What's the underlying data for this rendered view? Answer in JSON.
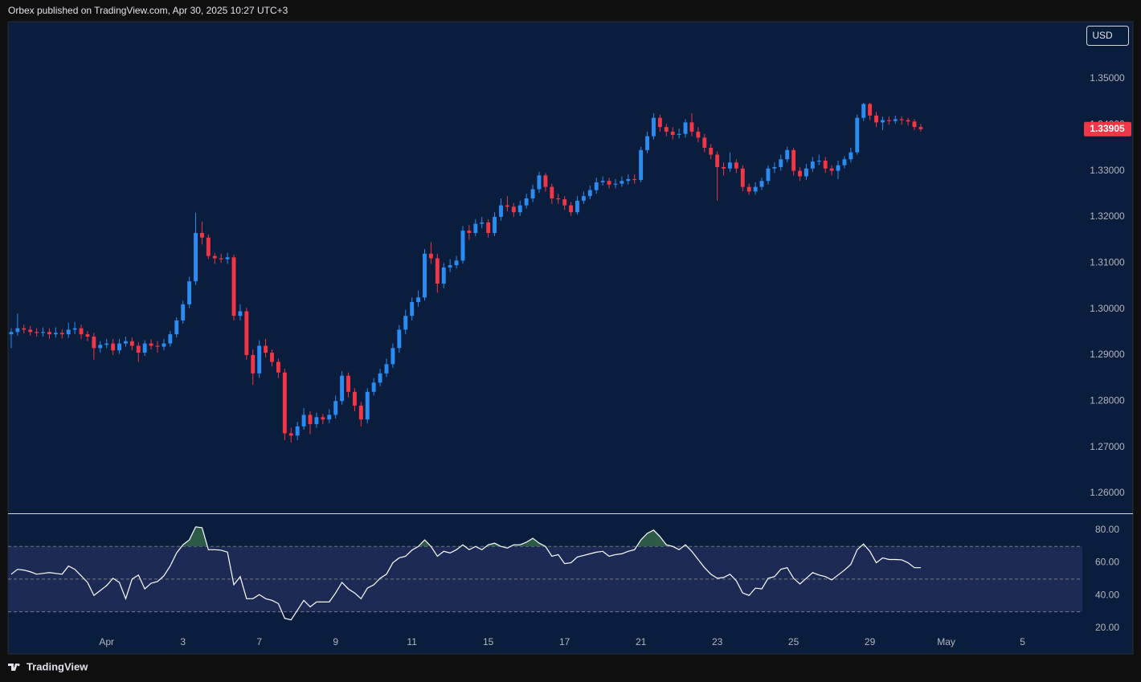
{
  "header": "Orbex published on TradingView.com, Apr 30, 2025 10:27 UTC+3",
  "currency": "USD",
  "brand": "TradingView",
  "chart_data": [
    {
      "type": "candlestick",
      "up_color": "#2a8cf0",
      "down_color": "#f23645",
      "last_color": "#f23645",
      "x": [
        0,
        1,
        2,
        3,
        4,
        5,
        6,
        7,
        8,
        9,
        10,
        11,
        12,
        13,
        14,
        15,
        16,
        17,
        18,
        19,
        20,
        21,
        22,
        23,
        24,
        25,
        26,
        27,
        28,
        29,
        30,
        31,
        32,
        33,
        34,
        35,
        36,
        37,
        38,
        39,
        40,
        41,
        42,
        43,
        44,
        45,
        46,
        47,
        48,
        49,
        50,
        51,
        52,
        53,
        54,
        55,
        56,
        57,
        58,
        59,
        60,
        61,
        62,
        63,
        64,
        65,
        66,
        67,
        68,
        69,
        70,
        71,
        72,
        73,
        74,
        75,
        76,
        77,
        78,
        79,
        80,
        81,
        82,
        83,
        84,
        85,
        86,
        87,
        88,
        89,
        90,
        91,
        92,
        93,
        94,
        95,
        96,
        97,
        98,
        99,
        100,
        101,
        102,
        103,
        104,
        105,
        106,
        107,
        108,
        109,
        110,
        111,
        112,
        113,
        114,
        115,
        116,
        117,
        118,
        119,
        120,
        121,
        122,
        123,
        124,
        125,
        126,
        127,
        128,
        129,
        130,
        131,
        132,
        133,
        134,
        135,
        136,
        137,
        138,
        139,
        140,
        141,
        142,
        143
      ],
      "open": [
        1.2945,
        1.295,
        1.2958,
        1.2955,
        1.295,
        1.2948,
        1.295,
        1.2945,
        1.2948,
        1.2945,
        1.2955,
        1.2958,
        1.2945,
        1.294,
        1.2915,
        1.2922,
        1.2925,
        1.291,
        1.2925,
        1.293,
        1.292,
        1.2905,
        1.2925,
        1.292,
        1.2918,
        1.2925,
        1.2945,
        1.2975,
        1.301,
        1.306,
        1.3165,
        1.3155,
        1.3115,
        1.311,
        1.3108,
        1.3112,
        1.2985,
        1.2995,
        1.29,
        1.286,
        1.292,
        1.2905,
        1.2885,
        1.2862,
        1.273,
        1.2725,
        1.2745,
        1.277,
        1.275,
        1.2765,
        1.276,
        1.277,
        1.28,
        1.2855,
        1.282,
        1.279,
        1.276,
        1.282,
        1.284,
        1.286,
        1.288,
        1.2915,
        1.2955,
        1.2985,
        1.3015,
        1.3025,
        1.312,
        1.311,
        1.3055,
        1.309,
        1.3095,
        1.3105,
        1.317,
        1.3165,
        1.3185,
        1.3188,
        1.3165,
        1.32,
        1.3225,
        1.3222,
        1.321,
        1.3225,
        1.324,
        1.326,
        1.329,
        1.3265,
        1.324,
        1.3238,
        1.3225,
        1.321,
        1.3235,
        1.3245,
        1.3258,
        1.3275,
        1.3278,
        1.327,
        1.3272,
        1.3278,
        1.3282,
        1.328,
        1.3345,
        1.3375,
        1.3415,
        1.3395,
        1.3385,
        1.3378,
        1.338,
        1.3405,
        1.3385,
        1.3372,
        1.335,
        1.3335,
        1.3308,
        1.3305,
        1.3318,
        1.3305,
        1.3265,
        1.3255,
        1.3265,
        1.3278,
        1.3305,
        1.3308,
        1.3325,
        1.3345,
        1.33,
        1.3288,
        1.3305,
        1.332,
        1.3322,
        1.3305,
        1.33,
        1.3312,
        1.3325,
        1.334,
        1.3415,
        1.3445,
        1.342,
        1.3405,
        1.341,
        1.3408,
        1.3412,
        1.341,
        1.3407,
        1.3395
      ],
      "high": [
        1.2958,
        1.299,
        1.2966,
        1.2963,
        1.2958,
        1.296,
        1.2958,
        1.296,
        1.2956,
        1.297,
        1.2972,
        1.2966,
        1.2952,
        1.2948,
        1.293,
        1.2935,
        1.2935,
        1.2935,
        1.294,
        1.2938,
        1.2928,
        1.2932,
        1.2934,
        1.293,
        1.2935,
        1.2952,
        1.2982,
        1.3018,
        1.307,
        1.3209,
        1.319,
        1.3162,
        1.3122,
        1.312,
        1.3122,
        1.3118,
        1.301,
        1.3002,
        1.2912,
        1.2932,
        1.2935,
        1.2912,
        1.2892,
        1.287,
        1.2742,
        1.2755,
        1.2785,
        1.2778,
        1.2775,
        1.2772,
        1.2782,
        1.2812,
        1.2865,
        1.2862,
        1.2828,
        1.2798,
        1.2828,
        1.285,
        1.287,
        1.2892,
        1.2925,
        1.2965,
        1.2998,
        1.3025,
        1.304,
        1.313,
        1.3145,
        1.312,
        1.31,
        1.3108,
        1.3115,
        1.318,
        1.3182,
        1.3195,
        1.32,
        1.3195,
        1.321,
        1.324,
        1.3245,
        1.323,
        1.3235,
        1.325,
        1.327,
        1.3298,
        1.3295,
        1.3272,
        1.325,
        1.3245,
        1.3232,
        1.3245,
        1.3255,
        1.3268,
        1.3285,
        1.3288,
        1.3285,
        1.3282,
        1.3288,
        1.3292,
        1.3292,
        1.3352,
        1.3385,
        1.3425,
        1.3422,
        1.3402,
        1.3395,
        1.3392,
        1.3412,
        1.3425,
        1.3395,
        1.338,
        1.3358,
        1.3342,
        1.3318,
        1.334,
        1.3325,
        1.3312,
        1.3272,
        1.3275,
        1.3285,
        1.3312,
        1.3318,
        1.3335,
        1.3352,
        1.335,
        1.3308,
        1.3315,
        1.333,
        1.3335,
        1.333,
        1.3312,
        1.3322,
        1.3332,
        1.335,
        1.3422,
        1.3448,
        1.3448,
        1.3428,
        1.3418,
        1.3418,
        1.342,
        1.3418,
        1.3415,
        1.3412,
        1.3402
      ],
      "low": [
        1.2915,
        1.2942,
        1.2947,
        1.2942,
        1.294,
        1.294,
        1.2935,
        1.2938,
        1.2936,
        1.2937,
        1.2945,
        1.2935,
        1.293,
        1.289,
        1.2905,
        1.2915,
        1.29,
        1.2902,
        1.2918,
        1.291,
        1.2885,
        1.2898,
        1.2912,
        1.2905,
        1.291,
        1.2918,
        1.2938,
        1.2968,
        1.3002,
        1.3052,
        1.314,
        1.3108,
        1.3098,
        1.31,
        1.3098,
        1.2975,
        1.2975,
        1.289,
        1.2835,
        1.285,
        1.2895,
        1.2875,
        1.285,
        1.2715,
        1.271,
        1.2715,
        1.2738,
        1.2728,
        1.2742,
        1.275,
        1.2752,
        1.2762,
        1.2792,
        1.2808,
        1.2778,
        1.2745,
        1.2752,
        1.2812,
        1.2832,
        1.2852,
        1.2872,
        1.2905,
        1.2945,
        1.2975,
        1.3005,
        1.3018,
        1.3098,
        1.3035,
        1.3045,
        1.308,
        1.3088,
        1.3098,
        1.315,
        1.3158,
        1.3175,
        1.3155,
        1.3158,
        1.3192,
        1.3212,
        1.32,
        1.3202,
        1.3218,
        1.3232,
        1.3252,
        1.3255,
        1.3228,
        1.3228,
        1.3215,
        1.3202,
        1.3205,
        1.3228,
        1.3238,
        1.325,
        1.3268,
        1.3262,
        1.3262,
        1.3265,
        1.327,
        1.3272,
        1.3275,
        1.3338,
        1.3368,
        1.3385,
        1.3375,
        1.3368,
        1.337,
        1.3372,
        1.3375,
        1.3362,
        1.334,
        1.3325,
        1.3235,
        1.329,
        1.3298,
        1.3295,
        1.3255,
        1.3248,
        1.3248,
        1.3258,
        1.327,
        1.3295,
        1.33,
        1.3318,
        1.329,
        1.3278,
        1.328,
        1.3298,
        1.3312,
        1.3295,
        1.329,
        1.3282,
        1.3305,
        1.3318,
        1.3335,
        1.3408,
        1.341,
        1.3395,
        1.3388,
        1.34,
        1.3402,
        1.34,
        1.3398,
        1.3388,
        1.3385
      ],
      "close": [
        1.295,
        1.2958,
        1.2955,
        1.295,
        1.2948,
        1.295,
        1.2945,
        1.2948,
        1.2945,
        1.2955,
        1.2958,
        1.2945,
        1.294,
        1.2915,
        1.2922,
        1.2925,
        1.291,
        1.2925,
        1.293,
        1.292,
        1.2905,
        1.2925,
        1.292,
        1.2918,
        1.2925,
        1.2945,
        1.2975,
        1.301,
        1.306,
        1.3165,
        1.3155,
        1.3115,
        1.311,
        1.3108,
        1.3112,
        1.2985,
        1.2995,
        1.29,
        1.286,
        1.292,
        1.2905,
        1.2885,
        1.2862,
        1.273,
        1.2725,
        1.2745,
        1.277,
        1.275,
        1.2765,
        1.276,
        1.277,
        1.28,
        1.2855,
        1.282,
        1.279,
        1.276,
        1.282,
        1.284,
        1.286,
        1.288,
        1.2915,
        1.2955,
        1.2985,
        1.3015,
        1.3025,
        1.312,
        1.311,
        1.3055,
        1.309,
        1.3095,
        1.3105,
        1.317,
        1.3165,
        1.3185,
        1.3188,
        1.3165,
        1.32,
        1.3225,
        1.3222,
        1.321,
        1.3225,
        1.324,
        1.326,
        1.329,
        1.3265,
        1.324,
        1.3238,
        1.3225,
        1.321,
        1.3235,
        1.3245,
        1.3258,
        1.3275,
        1.3278,
        1.327,
        1.3272,
        1.3278,
        1.3282,
        1.328,
        1.3345,
        1.3375,
        1.3415,
        1.3395,
        1.3385,
        1.3378,
        1.338,
        1.3405,
        1.3385,
        1.3372,
        1.335,
        1.3335,
        1.3308,
        1.3305,
        1.3318,
        1.3305,
        1.3265,
        1.3255,
        1.3265,
        1.3278,
        1.3305,
        1.3308,
        1.3325,
        1.3345,
        1.33,
        1.3288,
        1.3305,
        1.332,
        1.3322,
        1.3305,
        1.33,
        1.3312,
        1.3325,
        1.334,
        1.3415,
        1.3445,
        1.342,
        1.3405,
        1.341,
        1.3408,
        1.3412,
        1.341,
        1.3407,
        1.3395,
        1.33905
      ],
      "xlim": [
        -0.5,
        168.4
      ],
      "ylim": [
        1.2558,
        1.3622
      ],
      "yticks": [
        {
          "value": 1.26,
          "label": "1.26000"
        },
        {
          "value": 1.27,
          "label": "1.27000"
        },
        {
          "value": 1.28,
          "label": "1.28000"
        },
        {
          "value": 1.29,
          "label": "1.29000"
        },
        {
          "value": 1.3,
          "label": "1.30000"
        },
        {
          "value": 1.31,
          "label": "1.31000"
        },
        {
          "value": 1.32,
          "label": "1.32000"
        },
        {
          "value": 1.33,
          "label": "1.33000"
        },
        {
          "value": 1.34,
          "label": "1.34000"
        },
        {
          "value": 1.35,
          "label": "1.35000"
        }
      ]
    },
    {
      "type": "line",
      "color": "#ffffff",
      "band_color": "#1c2a55",
      "overbought_color": "#2e5a48",
      "x": [
        0,
        1,
        2,
        3,
        4,
        5,
        6,
        7,
        8,
        9,
        10,
        11,
        12,
        13,
        14,
        15,
        16,
        17,
        18,
        19,
        20,
        21,
        22,
        23,
        24,
        25,
        26,
        27,
        28,
        29,
        30,
        31,
        32,
        33,
        34,
        35,
        36,
        37,
        38,
        39,
        40,
        41,
        42,
        43,
        44,
        45,
        46,
        47,
        48,
        49,
        50,
        51,
        52,
        53,
        54,
        55,
        56,
        57,
        58,
        59,
        60,
        61,
        62,
        63,
        64,
        65,
        66,
        67,
        68,
        69,
        70,
        71,
        72,
        73,
        74,
        75,
        76,
        77,
        78,
        79,
        80,
        81,
        82,
        83,
        84,
        85,
        86,
        87,
        88,
        89,
        90,
        91,
        92,
        93,
        94,
        95,
        96,
        97,
        98,
        99,
        100,
        101,
        102,
        103,
        104,
        105,
        106,
        107,
        108,
        109,
        110,
        111,
        112,
        113,
        114,
        115,
        116,
        117,
        118,
        119,
        120,
        121,
        122,
        123,
        124,
        125,
        126,
        127,
        128,
        129,
        130,
        131,
        132,
        133,
        134,
        135,
        136,
        137,
        138,
        139,
        140,
        141,
        142,
        143
      ],
      "values": [
        53,
        56,
        55.5,
        54.5,
        53,
        53.5,
        54,
        53.5,
        53,
        58,
        56,
        52,
        48,
        40,
        43,
        46,
        50.5,
        48,
        38,
        50,
        52.5,
        44,
        47.5,
        48.5,
        52,
        58,
        66,
        71,
        74,
        82,
        81.5,
        68,
        68,
        67.7,
        66.5,
        46.5,
        51.5,
        38,
        38,
        40.5,
        38,
        37,
        35,
        26,
        25,
        31,
        37,
        33,
        36,
        36,
        36,
        41.5,
        48,
        44,
        41.5,
        38,
        44.5,
        46.5,
        50.5,
        53,
        60,
        63,
        64,
        67.7,
        70,
        74,
        70,
        64,
        67,
        66,
        68,
        71,
        68,
        70,
        68,
        71,
        72,
        70,
        69,
        71,
        71,
        72.6,
        75,
        72,
        70,
        64,
        65,
        59.5,
        60,
        63.5,
        64.5,
        65.5,
        66.5,
        67,
        64,
        65,
        65.5,
        67,
        68,
        74,
        78,
        80,
        76,
        71,
        70,
        68,
        71,
        67,
        62,
        57,
        53,
        50.5,
        51,
        53,
        49,
        41.5,
        40,
        44.5,
        44,
        50.5,
        51.5,
        56,
        57,
        50.5,
        47,
        50.5,
        54,
        52.5,
        51.5,
        49.5,
        52.5,
        55.5,
        59,
        68,
        71.5,
        67,
        60,
        63,
        62,
        62,
        61.8,
        60,
        57,
        57
      ],
      "bands": [
        30,
        50,
        70
      ],
      "xlim": [
        -0.5,
        168.4
      ],
      "ylim": [
        17,
        89.3
      ],
      "yticks": [
        {
          "value": 20,
          "label": "20.00"
        },
        {
          "value": 40,
          "label": "40.00"
        },
        {
          "value": 60,
          "label": "60.00"
        },
        {
          "value": 80,
          "label": "80.00"
        }
      ],
      "xticks": [
        {
          "value": 15,
          "label": "Apr"
        },
        {
          "value": 27,
          "label": "3"
        },
        {
          "value": 39,
          "label": "7"
        },
        {
          "value": 51,
          "label": "9"
        },
        {
          "value": 63,
          "label": "11"
        },
        {
          "value": 75,
          "label": "15"
        },
        {
          "value": 87,
          "label": "17"
        },
        {
          "value": 99,
          "label": "21"
        },
        {
          "value": 111,
          "label": "23"
        },
        {
          "value": 123,
          "label": "25"
        },
        {
          "value": 135,
          "label": "29"
        },
        {
          "value": 147,
          "label": "May"
        },
        {
          "value": 159,
          "label": "5"
        }
      ]
    }
  ]
}
